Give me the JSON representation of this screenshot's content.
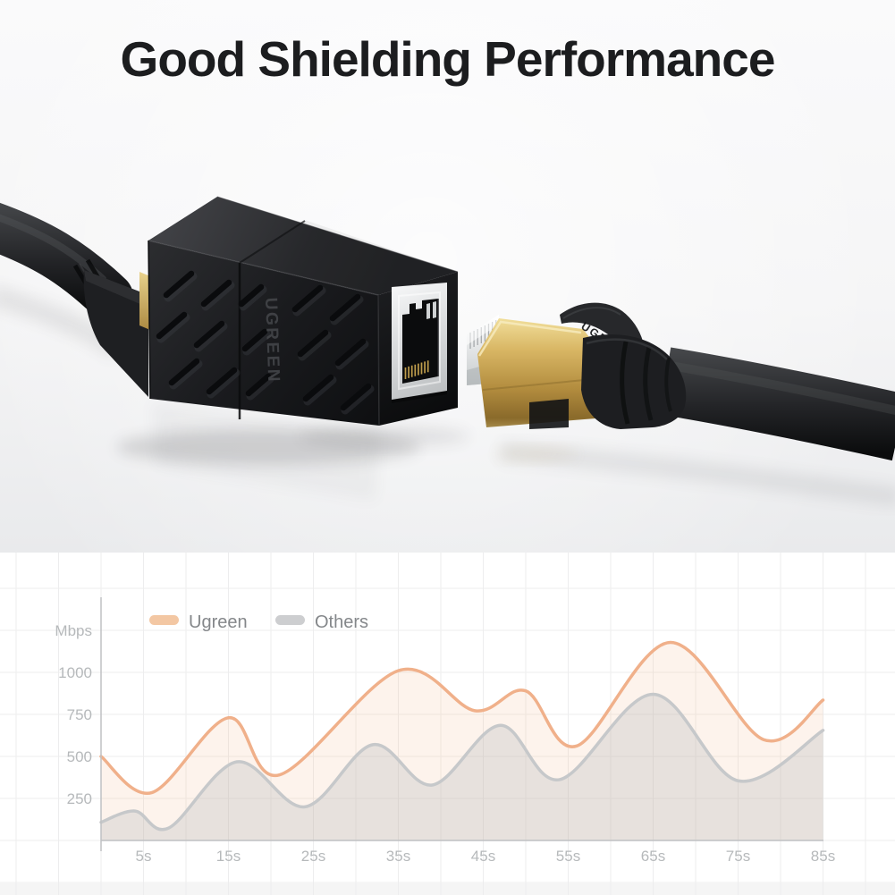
{
  "title": {
    "text": "Good Shielding Performance"
  },
  "product": {
    "coupler_logo": "UGREEN",
    "plug_logo": "UGREEN"
  },
  "chart_data": {
    "type": "area",
    "title": "",
    "ylabel": "Mbps",
    "x_unit": "s",
    "x_ticks": [
      5,
      15,
      25,
      35,
      45,
      55,
      65,
      75,
      85
    ],
    "y_ticks": [
      250,
      500,
      750,
      1000
    ],
    "xlim": [
      0,
      85
    ],
    "ylim": [
      0,
      1250
    ],
    "grid": true,
    "legend_position": "top-left",
    "colors": {
      "grid": "#ededee",
      "axis": "#bfc1c3",
      "tick_text": "#b6b9bb",
      "legend_text": "#84878a",
      "background": "#ffffff"
    },
    "series": [
      {
        "name": "Ugreen",
        "color": "#f0b08a",
        "swatch": "#f3c7a3",
        "fill": "rgba(242,179,137,0.16)",
        "points": [
          [
            0,
            500
          ],
          [
            6,
            285
          ],
          [
            15,
            730
          ],
          [
            21,
            390
          ],
          [
            35,
            1010
          ],
          [
            44,
            772
          ],
          [
            50,
            890
          ],
          [
            56,
            562
          ],
          [
            67,
            1178
          ],
          [
            78,
            600
          ],
          [
            85,
            835
          ]
        ]
      },
      {
        "name": "Others",
        "color": "#c6c8ca",
        "swatch": "#cdced0",
        "fill": "rgba(175,180,184,0.28)",
        "points": [
          [
            0,
            108
          ],
          [
            4,
            175
          ],
          [
            8,
            75
          ],
          [
            16,
            468
          ],
          [
            24,
            200
          ],
          [
            32,
            570
          ],
          [
            39,
            330
          ],
          [
            47,
            685
          ],
          [
            54,
            362
          ],
          [
            65,
            870
          ],
          [
            75,
            355
          ],
          [
            85,
            655
          ]
        ]
      }
    ]
  }
}
